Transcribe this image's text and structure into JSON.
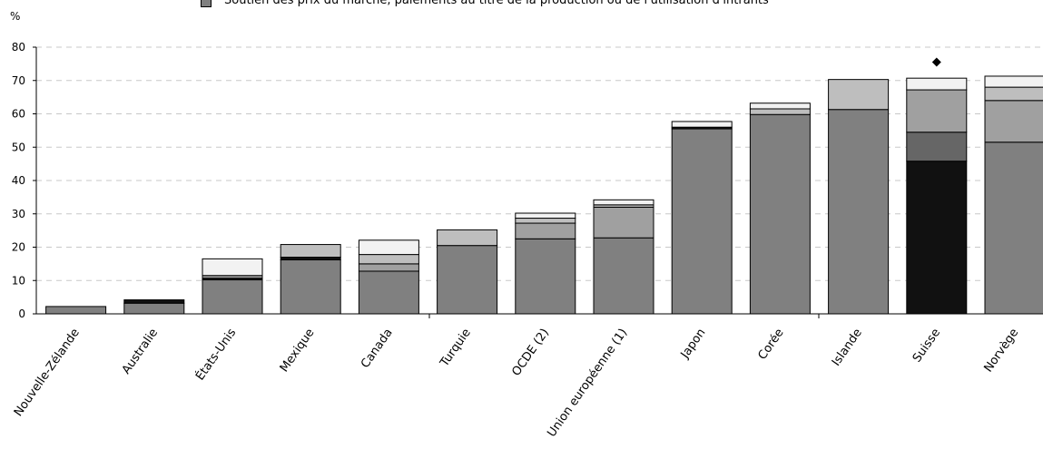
{
  "chart_data": {
    "type": "bar",
    "stacked": true,
    "ylabel": "%",
    "ylim": [
      0,
      80
    ],
    "yticks": [
      0,
      10,
      20,
      30,
      40,
      50,
      60,
      70,
      80
    ],
    "grid": true,
    "legend_position": "top",
    "categories": [
      "Nouvelle-Zélande",
      "Australie",
      "États-Unis",
      "Mexique",
      "Canada",
      "Turquie",
      "OCDE (2)",
      "Union européenne (1)",
      "Japon",
      "Corée",
      "Islande",
      "Suisse",
      "Norvège"
    ],
    "series": [
      {
        "name": "",
        "color": "#111111",
        "values": [
          0,
          0,
          0,
          0,
          0,
          0,
          0,
          0,
          0,
          0,
          0,
          45.8,
          0
        ]
      },
      {
        "name": "Soutien des prix du marché, paiements au titre de la production ou de l'utilisation d'intrants",
        "color": "#808080",
        "values": [
          2.2,
          3.2,
          10.2,
          16.2,
          12.8,
          20.5,
          22.5,
          22.8,
          55.5,
          59.8,
          61.3,
          0,
          51.5
        ]
      },
      {
        "name": "",
        "color": "#111111",
        "values": [
          0,
          1.0,
          0.5,
          0.8,
          0,
          0,
          0,
          0,
          0.5,
          0,
          0,
          0,
          0
        ]
      },
      {
        "name": "",
        "color": "#666666",
        "values": [
          0,
          0,
          0,
          0,
          0,
          0,
          0,
          0,
          0,
          0,
          0,
          8.7,
          0
        ]
      },
      {
        "name": "",
        "color": "#a0a0a0",
        "values": [
          0,
          0,
          0.8,
          0,
          2.2,
          0,
          4.7,
          9.2,
          0,
          0,
          0,
          12.7,
          12.5
        ]
      },
      {
        "name": "",
        "color": "#bebebe",
        "values": [
          0,
          0,
          0,
          3.8,
          2.8,
          4.7,
          1.5,
          0.7,
          0,
          1.7,
          9.0,
          0,
          4.0
        ]
      },
      {
        "name": "",
        "color": "#f2f2f2",
        "values": [
          0,
          0,
          5.0,
          0,
          4.3,
          0,
          1.5,
          1.5,
          1.7,
          1.7,
          0,
          3.5,
          3.3
        ]
      }
    ],
    "markers": [
      {
        "category": "Suisse",
        "value": 75.5,
        "shape": "diamond"
      }
    ]
  }
}
